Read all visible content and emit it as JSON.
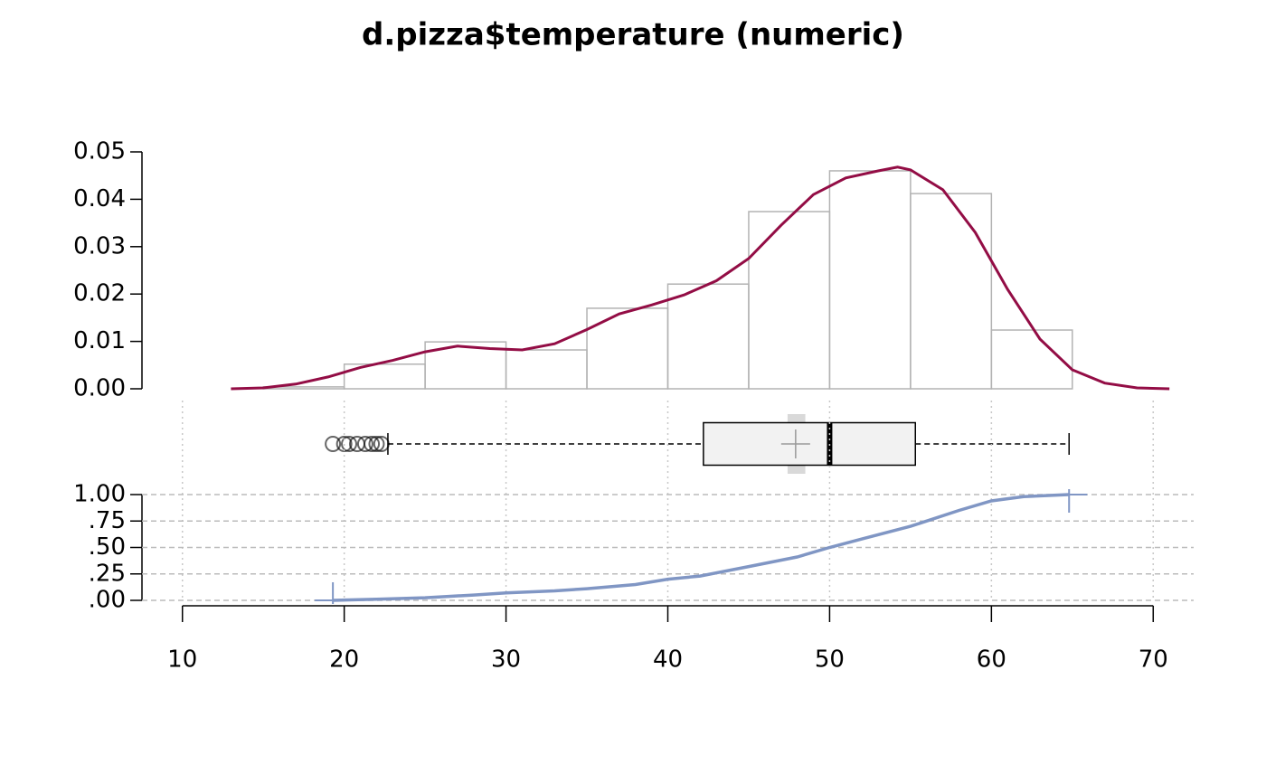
{
  "title": "d.pizza$temperature (numeric)",
  "chart_data": [
    {
      "type": "histogram",
      "bins": [
        15,
        20,
        25,
        30,
        35,
        40,
        45,
        50,
        55,
        60,
        65
      ],
      "values": [
        0.0004,
        0.0052,
        0.0099,
        0.0082,
        0.017,
        0.0221,
        0.0374,
        0.046,
        0.0412,
        0.0124
      ],
      "color": "#b3b3b3",
      "xlim": [
        7.5,
        72.5
      ],
      "ylim": [
        0,
        0.05
      ],
      "yticks": [
        {
          "value": 0,
          "label": "0.00"
        },
        0.01,
        0.02,
        0.03,
        0.04,
        0.05
      ],
      "density": {
        "color": "#930d45",
        "x": [
          13,
          15,
          17,
          19,
          21,
          23,
          25,
          27,
          29,
          31,
          33,
          35,
          37,
          39,
          41,
          43,
          45,
          47,
          49,
          51,
          53,
          54.2,
          55,
          57,
          59,
          61,
          63,
          65,
          67,
          69,
          71
        ],
        "y": [
          0,
          0.0002,
          0.001,
          0.0025,
          0.0045,
          0.006,
          0.0078,
          0.009,
          0.0085,
          0.0082,
          0.0095,
          0.0125,
          0.0158,
          0.0177,
          0.0198,
          0.0228,
          0.0275,
          0.0345,
          0.041,
          0.0445,
          0.046,
          0.0468,
          0.0462,
          0.042,
          0.033,
          0.021,
          0.0105,
          0.004,
          0.0012,
          0.0002,
          0
        ]
      }
    },
    {
      "type": "box",
      "xlim": [
        7.5,
        72.5
      ],
      "whisker_low": 22.7,
      "q1": 42.2,
      "median": 50,
      "q3": 55.3,
      "whisker_high": 64.8,
      "mean": 47.9,
      "mean_ci": [
        47.4,
        48.5
      ],
      "outliers": [
        19.3,
        20.0,
        20.3,
        20.8,
        21.3,
        21.7,
        22.0,
        22.3
      ],
      "fill": "#f2f2f2"
    },
    {
      "type": "ecdf",
      "color": "#8096c4",
      "xlim": [
        7.5,
        72.5
      ],
      "ylim": [
        0,
        1
      ],
      "xticks": [
        10,
        20,
        30,
        40,
        50,
        60,
        70
      ],
      "yticks": [
        {
          "value": 0,
          "label": ".00"
        },
        {
          "value": 0.25,
          "label": ".25"
        },
        {
          "value": 0.5,
          "label": ".50"
        },
        {
          "value": 0.75,
          "label": ".75"
        },
        {
          "value": 1,
          "label": "1.00"
        }
      ],
      "grid": true,
      "x": [
        19.3,
        22,
        25,
        28,
        30,
        33,
        35,
        38,
        40,
        42,
        45,
        48,
        50,
        52,
        55,
        58,
        60,
        62,
        64.8
      ],
      "y": [
        0,
        0.01,
        0.025,
        0.05,
        0.07,
        0.09,
        0.11,
        0.15,
        0.2,
        0.23,
        0.32,
        0.41,
        0.5,
        0.58,
        0.7,
        0.85,
        0.94,
        0.98,
        1
      ]
    }
  ]
}
